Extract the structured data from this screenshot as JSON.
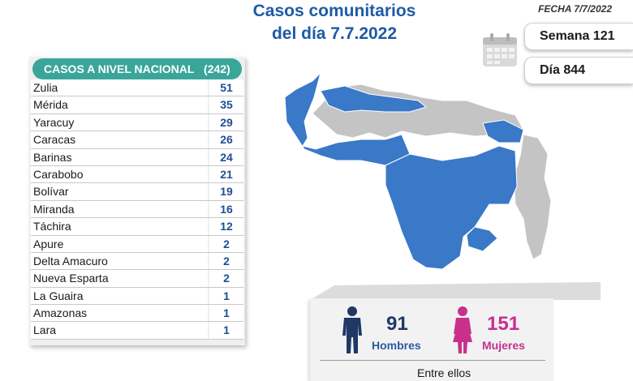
{
  "title": {
    "line1": "Casos comunitarios",
    "line2": "del día 7.7.2022"
  },
  "date_label": "FECHA 7/7/2022",
  "semana_label": "Semana 121",
  "dia_label": "Día 844",
  "table": {
    "header": "CASOS A NIVEL NACIONAL",
    "total": "(242)"
  },
  "chart_data": {
    "type": "table",
    "title": "CASOS A NIVEL NACIONAL",
    "categories": [
      "Zulia",
      "Mérida",
      "Yaracuy",
      "Caracas",
      "Barinas",
      "Carabobo",
      "Bolívar",
      "Miranda",
      "Táchira",
      "Apure",
      "Delta Amacuro",
      "Nueva Esparta",
      "La Guaira",
      "Amazonas",
      "Lara"
    ],
    "series": [
      {
        "values": [
          51,
          35,
          29,
          26,
          24,
          21,
          19,
          16,
          12,
          2,
          2,
          2,
          1,
          1,
          1
        ]
      }
    ],
    "total": 242
  },
  "gender": {
    "hombres_value": "91",
    "hombres_label": "Hombres",
    "mujeres_value": "151",
    "mujeres_label": "Mujeres",
    "entre_label": "Entre ellos"
  },
  "colors": {
    "title": "#1f5aa6",
    "header": "#3aa69a",
    "value": "#1f4e96",
    "map_active": "#3a78c8",
    "map_inactive": "#c4c4c4",
    "mujeres": "#c8308c",
    "hombres": "#1f3864"
  },
  "icons": [
    "calendar-icon",
    "man-icon",
    "woman-icon"
  ]
}
